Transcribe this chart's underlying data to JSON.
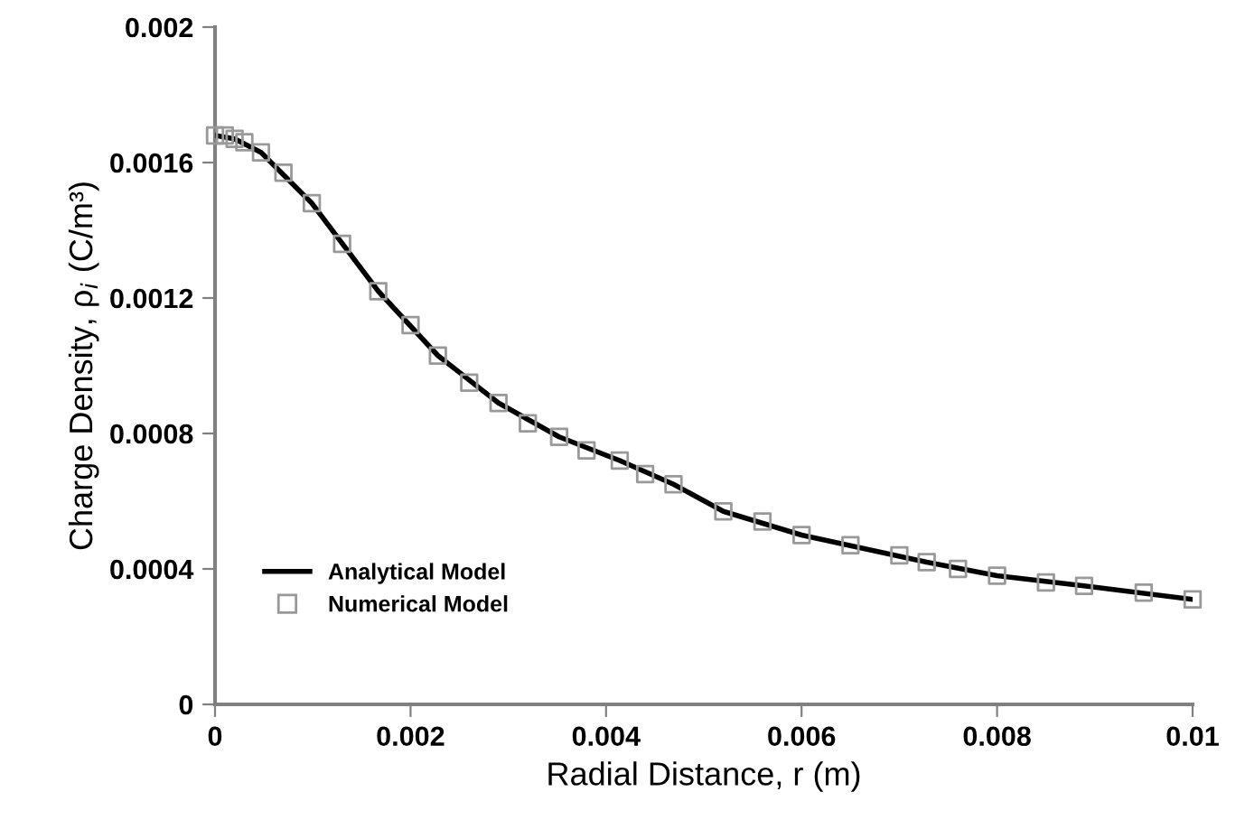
{
  "chart_data": {
    "type": "line",
    "xlabel": "Radial Distance, r (m)",
    "ylabel": "Charge Density, ρ$_{i}$ (C/m³)",
    "xlim": [
      0,
      0.01
    ],
    "xticks": [
      0,
      0.002,
      0.004,
      0.006,
      0.008,
      0.01
    ],
    "ylim": [
      0,
      0.002
    ],
    "yticks": [
      0,
      0.0004,
      0.0008,
      0.0012,
      0.0016,
      0.002
    ],
    "grid": false,
    "legend": "bottom left",
    "series": [
      {
        "name": "Analytical Model",
        "color": "#000000",
        "marker": "none",
        "line_style": "solid",
        "x": [
          0,
          0.0002,
          0.00047,
          0.00099,
          0.00167,
          0.00228,
          0.0029,
          0.00352,
          0.00414,
          0.00469,
          0.0052,
          0.006,
          0.00728,
          0.008,
          0.00889,
          0.01
        ],
        "values": [
          0.00168,
          0.00167,
          0.00163,
          0.00148,
          0.00122,
          0.00103,
          0.00089,
          0.00079,
          0.00072,
          0.00065,
          0.00057,
          0.0005,
          0.00042,
          0.00038,
          0.00035,
          0.00031
        ]
      },
      {
        "name": "Numerical Model",
        "type": "scatter",
        "color": "#999999",
        "marker": "square",
        "x": [
          0,
          0.0001,
          0.0002,
          0.0003,
          0.00047,
          0.0007,
          0.00099,
          0.0013,
          0.00167,
          0.002,
          0.00228,
          0.0026,
          0.0029,
          0.0032,
          0.00352,
          0.0038,
          0.00414,
          0.0044,
          0.00469,
          0.0052,
          0.0056,
          0.006,
          0.0065,
          0.007,
          0.00728,
          0.0076,
          0.008,
          0.0085,
          0.00889,
          0.0095,
          0.01
        ],
        "values": [
          0.00168,
          0.00168,
          0.00167,
          0.00166,
          0.00163,
          0.00157,
          0.00148,
          0.00136,
          0.00122,
          0.00112,
          0.00103,
          0.00095,
          0.00089,
          0.00083,
          0.00079,
          0.00075,
          0.00072,
          0.00068,
          0.00065,
          0.00057,
          0.00054,
          0.0005,
          0.00047,
          0.00044,
          0.00042,
          0.0004,
          0.00038,
          0.00036,
          0.00035,
          0.00033,
          0.00031
        ]
      }
    ]
  }
}
